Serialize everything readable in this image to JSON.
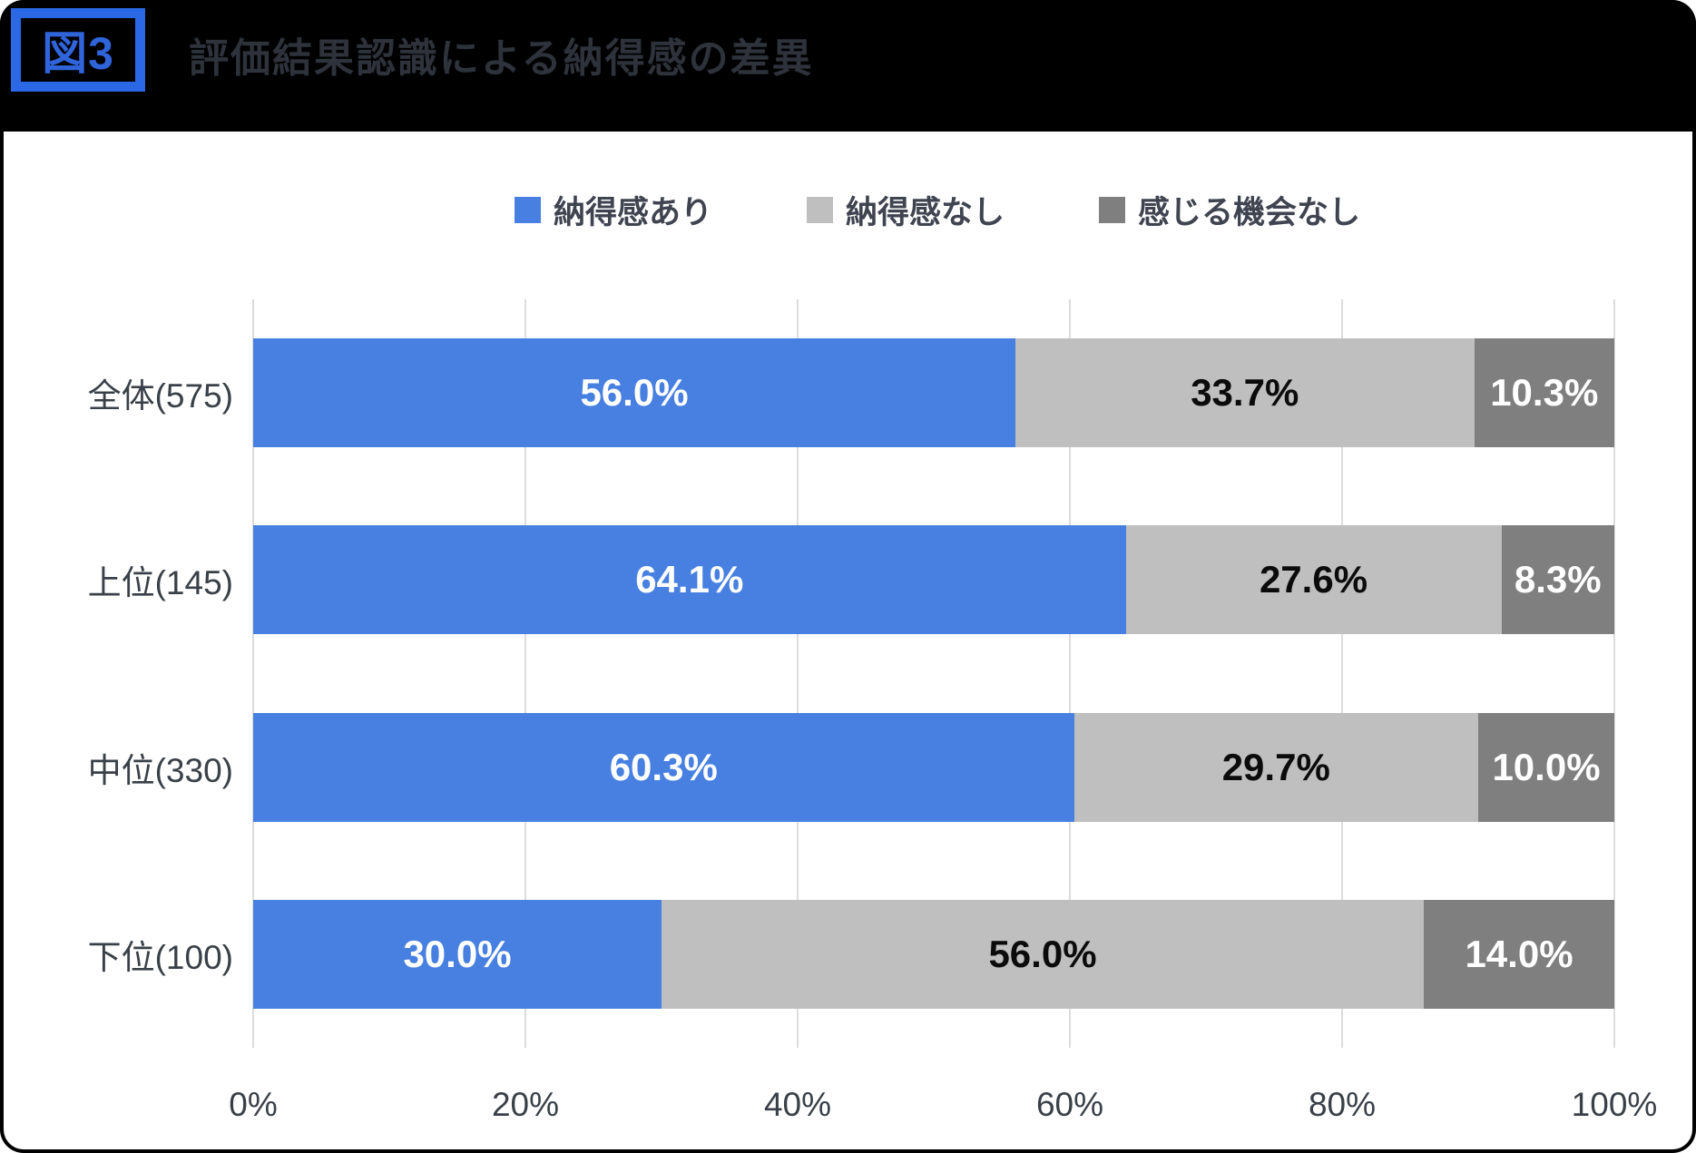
{
  "header": {
    "figure_label": "図3",
    "title": "評価結果認識による納得感の差異"
  },
  "chart_data": {
    "type": "bar",
    "variant": "horizontal-stacked",
    "title": "評価結果認識による納得感の差異",
    "categories": [
      "全体(575)",
      "上位(145)",
      "中位(330)",
      "下位(100)"
    ],
    "series": [
      {
        "name": "納得感あり",
        "color": "#4780E0",
        "label_color": "#FFFFFF",
        "values": [
          56.0,
          64.1,
          60.3,
          30.0
        ]
      },
      {
        "name": "納得感なし",
        "color": "#BFBFBF",
        "label_color": "#0B0B0B",
        "values": [
          33.7,
          27.6,
          29.7,
          56.0
        ]
      },
      {
        "name": "感じる機会なし",
        "color": "#7F7F7F",
        "label_color": "#FFFFFF",
        "values": [
          10.3,
          8.3,
          10.0,
          14.0
        ]
      }
    ],
    "value_label_suffix": "%",
    "x_axis": {
      "min": 0,
      "max": 100,
      "tick_step": 20,
      "ticks": [
        "0%",
        "20%",
        "40%",
        "60%",
        "80%",
        "100%"
      ]
    },
    "legend_position": "top",
    "grid": true
  },
  "colors": {
    "page_background": "#000000",
    "panel_background": "#FFFFFF",
    "badge_border": "#2A68E6",
    "badge_text": "#3064DB",
    "header_title_text": "#2D323B",
    "gridline": "#DCDCDC",
    "axis_text": "#3A4048",
    "legend_text": "#3F4450"
  }
}
